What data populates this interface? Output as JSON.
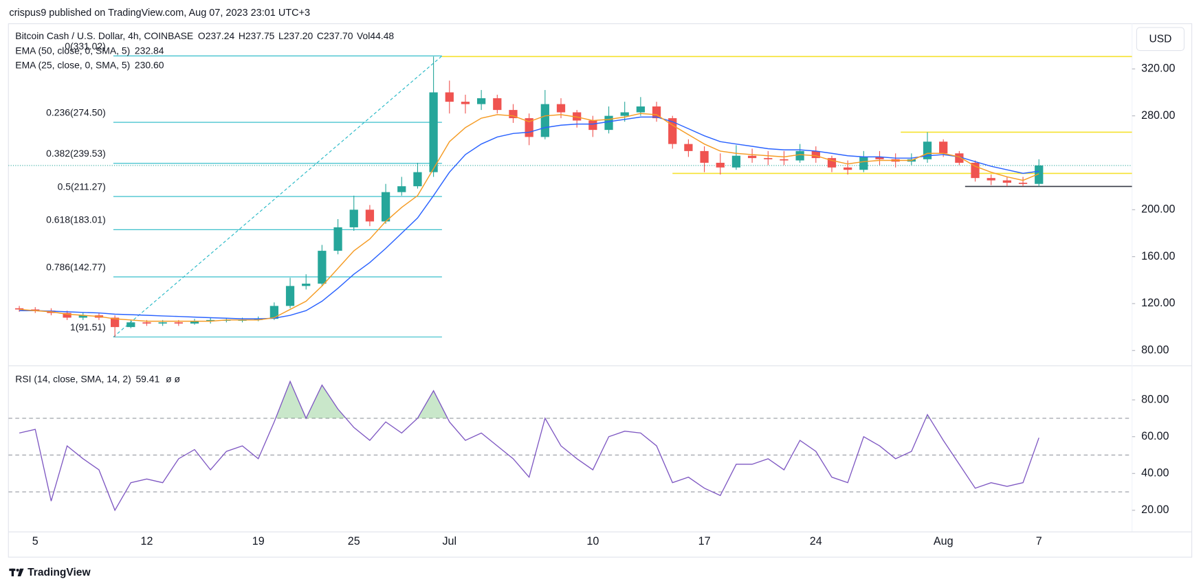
{
  "publisher": "crispus9 published on TradingView.com, Aug 07, 2023 23:01 UTC+3",
  "brand": "TradingView",
  "chart_data": [
    {
      "type": "candlestick",
      "title": "Bitcoin Cash / U.S. Dollar, 4h, COINBASE",
      "currency": "USD",
      "ohlc_legend": [
        {
          "key": "O",
          "label": "237.24"
        },
        {
          "key": "H",
          "label": "237.75"
        },
        {
          "key": "L",
          "label": "237.20"
        },
        {
          "key": "C",
          "value": 237.7,
          "label": "237.70"
        },
        {
          "key": "Vol",
          "label": "44.48"
        }
      ],
      "categories": [
        null,
        "5",
        null,
        null,
        null,
        null,
        null,
        null,
        "12",
        null,
        null,
        null,
        null,
        null,
        null,
        "19",
        null,
        null,
        null,
        null,
        null,
        "25",
        null,
        null,
        null,
        null,
        null,
        "Jul",
        null,
        null,
        null,
        null,
        null,
        null,
        null,
        null,
        "10",
        null,
        null,
        null,
        null,
        null,
        null,
        "17",
        null,
        null,
        null,
        null,
        null,
        null,
        "24",
        null,
        null,
        null,
        null,
        null,
        null,
        null,
        "Aug",
        null,
        null,
        null,
        null,
        null,
        "7"
      ],
      "open": [
        116,
        115,
        114,
        112,
        108,
        110,
        108,
        100,
        104,
        103,
        104,
        103,
        105,
        106,
        106,
        106,
        107,
        118,
        135,
        137,
        165,
        185,
        200,
        190,
        215,
        220,
        232,
        300,
        292,
        290,
        295,
        285,
        278,
        262,
        290,
        283,
        276,
        268,
        280,
        283,
        288,
        278,
        256,
        250,
        240,
        236,
        246,
        244,
        243,
        242,
        250,
        244,
        236,
        234,
        245,
        243,
        241,
        243,
        258,
        248,
        240,
        227,
        225,
        223,
        222
      ],
      "high": [
        118,
        117,
        116,
        114,
        112,
        112,
        110,
        106,
        106,
        106,
        106,
        107,
        108,
        108,
        108,
        109,
        121,
        142,
        145,
        170,
        192,
        212,
        204,
        222,
        228,
        240,
        330.53,
        310,
        298,
        302,
        298,
        290,
        282,
        302,
        295,
        285,
        280,
        288,
        292,
        296,
        292,
        280,
        260,
        254,
        248,
        255,
        252,
        250,
        250,
        256,
        254,
        246,
        242,
        250,
        250,
        248,
        248,
        266.09,
        260,
        250,
        242,
        230,
        228,
        228,
        243
      ],
      "low": [
        113,
        112,
        110,
        106,
        106,
        106,
        91.51,
        99,
        101,
        101,
        101,
        102,
        103,
        104,
        104,
        105,
        106,
        116,
        132,
        135,
        162,
        182,
        186,
        188,
        212,
        218,
        228,
        282,
        282,
        285,
        282,
        274,
        255,
        260,
        278,
        270,
        262,
        265,
        275,
        280,
        275,
        252,
        245,
        232,
        230,
        234,
        240,
        238,
        238,
        240,
        240,
        232,
        230,
        232,
        238,
        236,
        238,
        240,
        245,
        238,
        224,
        221,
        220,
        220,
        219.83
      ],
      "close": [
        115,
        114,
        112,
        108,
        110,
        108,
        100,
        104,
        103,
        104,
        103,
        105,
        106,
        106,
        106,
        107,
        118,
        135,
        137,
        165,
        185,
        200,
        190,
        215,
        220,
        232,
        300,
        292,
        290,
        295,
        285,
        278,
        262,
        290,
        283,
        276,
        268,
        280,
        283,
        288,
        278,
        256,
        250,
        240,
        236,
        246,
        244,
        243,
        242,
        250,
        244,
        236,
        234,
        245,
        243,
        241,
        243,
        258,
        248,
        240,
        227,
        225,
        223,
        222,
        237.7
      ],
      "up_color": "#26a69a",
      "down_color": "#ef5350",
      "series": [
        {
          "name": "EMA (50, close, 0, SMA, 5)",
          "legend_value": "232.84",
          "color": "#2962ff",
          "values": [
            114,
            114,
            113.5,
            113,
            112.5,
            112,
            111,
            110.5,
            110,
            109.5,
            109,
            108.5,
            108,
            107.5,
            107,
            107,
            107.5,
            110,
            114,
            122,
            133,
            145,
            155,
            167,
            180,
            193,
            212,
            232,
            247,
            256,
            262,
            265,
            266,
            270,
            272,
            273,
            273,
            275,
            277,
            279,
            279,
            275,
            269,
            263,
            258,
            256,
            254,
            252,
            251,
            251,
            250,
            248,
            246,
            245,
            245,
            244,
            244,
            246,
            247,
            245,
            241,
            237,
            234,
            231,
            232.84
          ]
        },
        {
          "name": "EMA (25, close, 0, SMA, 5)",
          "legend_value": "230.60",
          "color": "#f59b23",
          "values": [
            115,
            114,
            113,
            111,
            110,
            109,
            107,
            106,
            105,
            105,
            105,
            105,
            105,
            106,
            106,
            106,
            108,
            115,
            122,
            135,
            150,
            165,
            175,
            190,
            202,
            212,
            235,
            258,
            270,
            278,
            281,
            280,
            275,
            280,
            281,
            279,
            276,
            277,
            279,
            282,
            281,
            272,
            264,
            256,
            250,
            248,
            247,
            246,
            245,
            247,
            246,
            242,
            239,
            241,
            242,
            242,
            242,
            248,
            248,
            245,
            237,
            232,
            228,
            225,
            230.6
          ]
        }
      ],
      "fib": {
        "color": "#22b7c5",
        "levels": [
          {
            "value": 331.02,
            "label": "0(331.02)"
          },
          {
            "value": 274.5,
            "label": "0.236(274.50)"
          },
          {
            "value": 239.53,
            "label": "0.382(239.53)"
          },
          {
            "value": 211.27,
            "label": "0.5(211.27)"
          },
          {
            "value": 183.01,
            "label": "0.618(183.01)"
          },
          {
            "value": 142.77,
            "label": "0.786(142.77)"
          },
          {
            "value": 91.51,
            "label": "1(91.51)"
          }
        ]
      },
      "horizontal_lines": [
        {
          "value": 330.53,
          "color": "#f5e12e"
        },
        {
          "value": 266.09,
          "color": "#f5e12e"
        },
        {
          "value": 230.94,
          "color": "#f5e12e"
        },
        {
          "value": 219.83,
          "color": "#363a45"
        }
      ],
      "ylim": [
        66.96,
        358.5
      ],
      "yticks": [
        {
          "value": 80,
          "label": "80.00"
        },
        {
          "value": 120,
          "label": "120.00"
        },
        {
          "value": 160,
          "label": "160.00"
        },
        {
          "value": 200,
          "label": "200.00"
        },
        {
          "value": 280,
          "label": "280.00"
        },
        {
          "value": 320,
          "label": "320.00"
        }
      ]
    },
    {
      "type": "line",
      "title": "RSI (14, close, SMA, 14, 2)",
      "legend_value": "59.41",
      "flags": "ø ø",
      "series": [
        {
          "name": "RSI",
          "color": "#7e57c2",
          "values": [
            62,
            64,
            25,
            55,
            48,
            42,
            20,
            35,
            37,
            35,
            48,
            53,
            42,
            52,
            55,
            48,
            68,
            90,
            70,
            88,
            75,
            65,
            58,
            68,
            62,
            70,
            85,
            68,
            58,
            62,
            55,
            48,
            38,
            70,
            55,
            48,
            42,
            60,
            63,
            62,
            55,
            35,
            38,
            32,
            28,
            45,
            45,
            48,
            42,
            58,
            52,
            38,
            35,
            60,
            55,
            48,
            52,
            72,
            58,
            45,
            32,
            35,
            33,
            35,
            59.41
          ]
        }
      ],
      "levels": [
        30,
        50,
        70
      ],
      "overbought_fill": "#4caf50",
      "ylim": [
        8.25,
        98.5
      ],
      "yticks": [
        {
          "value": 20,
          "label": "20.00"
        },
        {
          "value": 40,
          "label": "40.00"
        },
        {
          "value": 60,
          "label": "60.00"
        },
        {
          "value": 80,
          "label": "80.00"
        }
      ]
    }
  ]
}
